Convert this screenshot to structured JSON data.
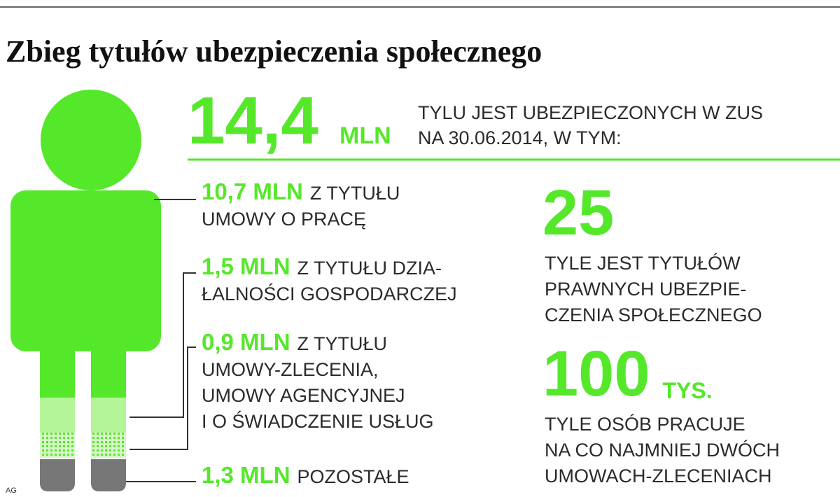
{
  "title": "Zbieg tytułów ubezpieczenia społecznego",
  "total": {
    "value": "14,4",
    "unit": "MLN",
    "description": [
      "TYLU JEST UBEZPIECZONYCH W ZUS",
      "NA 30.06.2014, W TYM:"
    ]
  },
  "items": [
    {
      "value": "10,7 MLN",
      "lines": [
        "Z TYTUŁU",
        "UMOWY O PRACĘ"
      ]
    },
    {
      "value": "1,5 MLN",
      "lines": [
        "Z TYTUŁU DZIA-",
        "ŁALNOŚCI GOSPODARCZEJ"
      ]
    },
    {
      "value": "0,9 MLN",
      "lines": [
        "Z TYTUŁU",
        "UMOWY-ZLECENIA,",
        "UMOWY AGENCYJNEJ",
        "I O ŚWIADCZENIE USŁUG"
      ]
    },
    {
      "value": "1,3 MLN",
      "lines": [
        "POZOSTAŁE"
      ]
    }
  ],
  "facts": [
    {
      "value": "25",
      "lines": [
        "TYLE JEST TYTUŁÓW",
        "PRAWNYCH UBEZPIE-",
        "CZENIA SPOŁECZNEGO"
      ]
    },
    {
      "value": "100",
      "unit": "TYS.",
      "lines": [
        "TYLE OSÓB PRACUJE",
        "NA CO NAJMNIEJ DWÓCH",
        "UMOWACH-ZLECENIACH"
      ]
    }
  ],
  "credit": "AG"
}
